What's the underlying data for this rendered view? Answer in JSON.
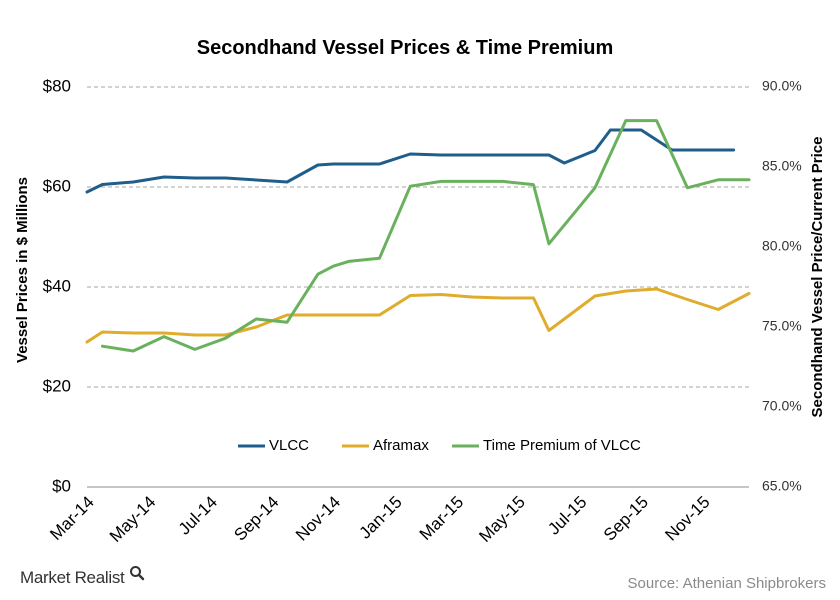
{
  "brand": {
    "name": "Market Realist",
    "logo_icon": "magnifier-logo-icon"
  },
  "source": "Source: Athenian Shipbrokers",
  "chart_data": {
    "type": "line",
    "title": "Secondhand Vessel Prices & Time Premium",
    "ylabel_left": "Vessel Prices in $ Millions",
    "ylabel_right": "Secondhand Vessel Price/Current Price",
    "ylim_left": [
      0,
      80
    ],
    "yticks_left": [
      "$0",
      "$20",
      "$40",
      "$60",
      "$80"
    ],
    "ylim_right": [
      65,
      90
    ],
    "yticks_right": [
      "65.0%",
      "70.0%",
      "75.0%",
      "80.0%",
      "85.0%",
      "90.0%"
    ],
    "x_tick_labels": [
      "Mar-14",
      "May-14",
      "Jul-14",
      "Sep-14",
      "Nov-14",
      "Jan-15",
      "Mar-15",
      "May-15",
      "Jul-15",
      "Sep-15",
      "Nov-15"
    ],
    "grid": true,
    "legend_position": "bottom-inside",
    "series": [
      {
        "name": "VLCC",
        "axis": "left",
        "color": "#1f5e8c",
        "x": [
          0,
          0.5,
          1.5,
          2.5,
          3.5,
          4.5,
          5.5,
          6.5,
          7.5,
          8,
          8.5,
          9.5,
          10.5,
          11.5,
          12.5,
          13,
          14,
          15,
          15.5,
          16.5,
          17,
          18,
          19,
          20,
          21
        ],
        "y": [
          59,
          60.5,
          61,
          62,
          61.8,
          61.8,
          61.4,
          61,
          64.4,
          64.6,
          64.6,
          64.6,
          66.6,
          66.4,
          66.4,
          66.4,
          66.4,
          66.4,
          64.8,
          67.3,
          71.4,
          71.4,
          67.4,
          67.4,
          67.4
        ]
      },
      {
        "name": "Aframax",
        "axis": "left",
        "color": "#e0ac2b",
        "x": [
          0,
          0.5,
          1.5,
          2.5,
          3.5,
          4.5,
          5.5,
          6.5,
          7.5,
          8.5,
          9.5,
          10.5,
          11.5,
          12.5,
          13.5,
          14.5,
          15,
          16.5,
          17.5,
          18.5,
          19.5,
          20.5,
          21.5
        ],
        "y": [
          29,
          31,
          30.8,
          30.8,
          30.4,
          30.4,
          32,
          34.4,
          34.4,
          34.4,
          34.4,
          38.3,
          38.5,
          38,
          37.8,
          37.8,
          31.3,
          38.2,
          39.2,
          39.6,
          37.5,
          35.5,
          38.7
        ]
      },
      {
        "name": "Time Premium of VLCC",
        "axis": "right",
        "color": "#6ab15e",
        "x": [
          0.5,
          1.5,
          2.5,
          3.5,
          4.5,
          5.5,
          6.5,
          7.5,
          8,
          8.5,
          9.5,
          10.5,
          11.5,
          12.5,
          13.5,
          14.5,
          15,
          16.5,
          17.5,
          18.5,
          19.5,
          20.5,
          21.5
        ],
        "y": [
          73.8,
          73.5,
          74.4,
          73.6,
          74.3,
          75.5,
          75.3,
          78.3,
          78.8,
          79.1,
          79.3,
          83.8,
          84.1,
          84.1,
          84.1,
          83.9,
          80.2,
          83.7,
          87.9,
          87.9,
          83.7,
          84.2,
          84.2
        ]
      }
    ]
  }
}
